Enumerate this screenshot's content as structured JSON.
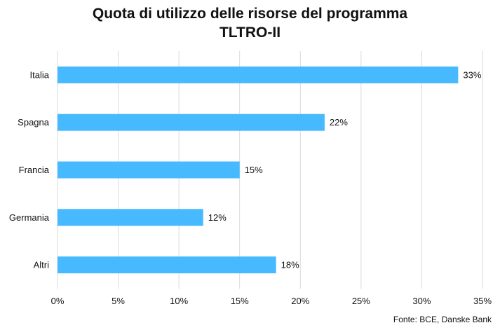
{
  "chart_data": {
    "type": "bar",
    "orientation": "horizontal",
    "title_line1": "Quota di utilizzo delle risorse del programma",
    "title_line2": "TLTRO-II",
    "categories": [
      "Italia",
      "Spagna",
      "Francia",
      "Germania",
      "Altri"
    ],
    "values": [
      33,
      22,
      15,
      12,
      18
    ],
    "value_labels": [
      "33%",
      "22%",
      "15%",
      "12%",
      "18%"
    ],
    "x_ticks": [
      0,
      5,
      10,
      15,
      20,
      25,
      30,
      35
    ],
    "x_tick_labels": [
      "0%",
      "5%",
      "10%",
      "15%",
      "20%",
      "25%",
      "30%",
      "35%"
    ],
    "xlim": [
      0,
      35
    ],
    "xlabel": "",
    "ylabel": "",
    "grid": "vertical",
    "legend": "none",
    "bar_color": "#47b9ff"
  },
  "source": "Fonte: BCE, Danske Bank"
}
